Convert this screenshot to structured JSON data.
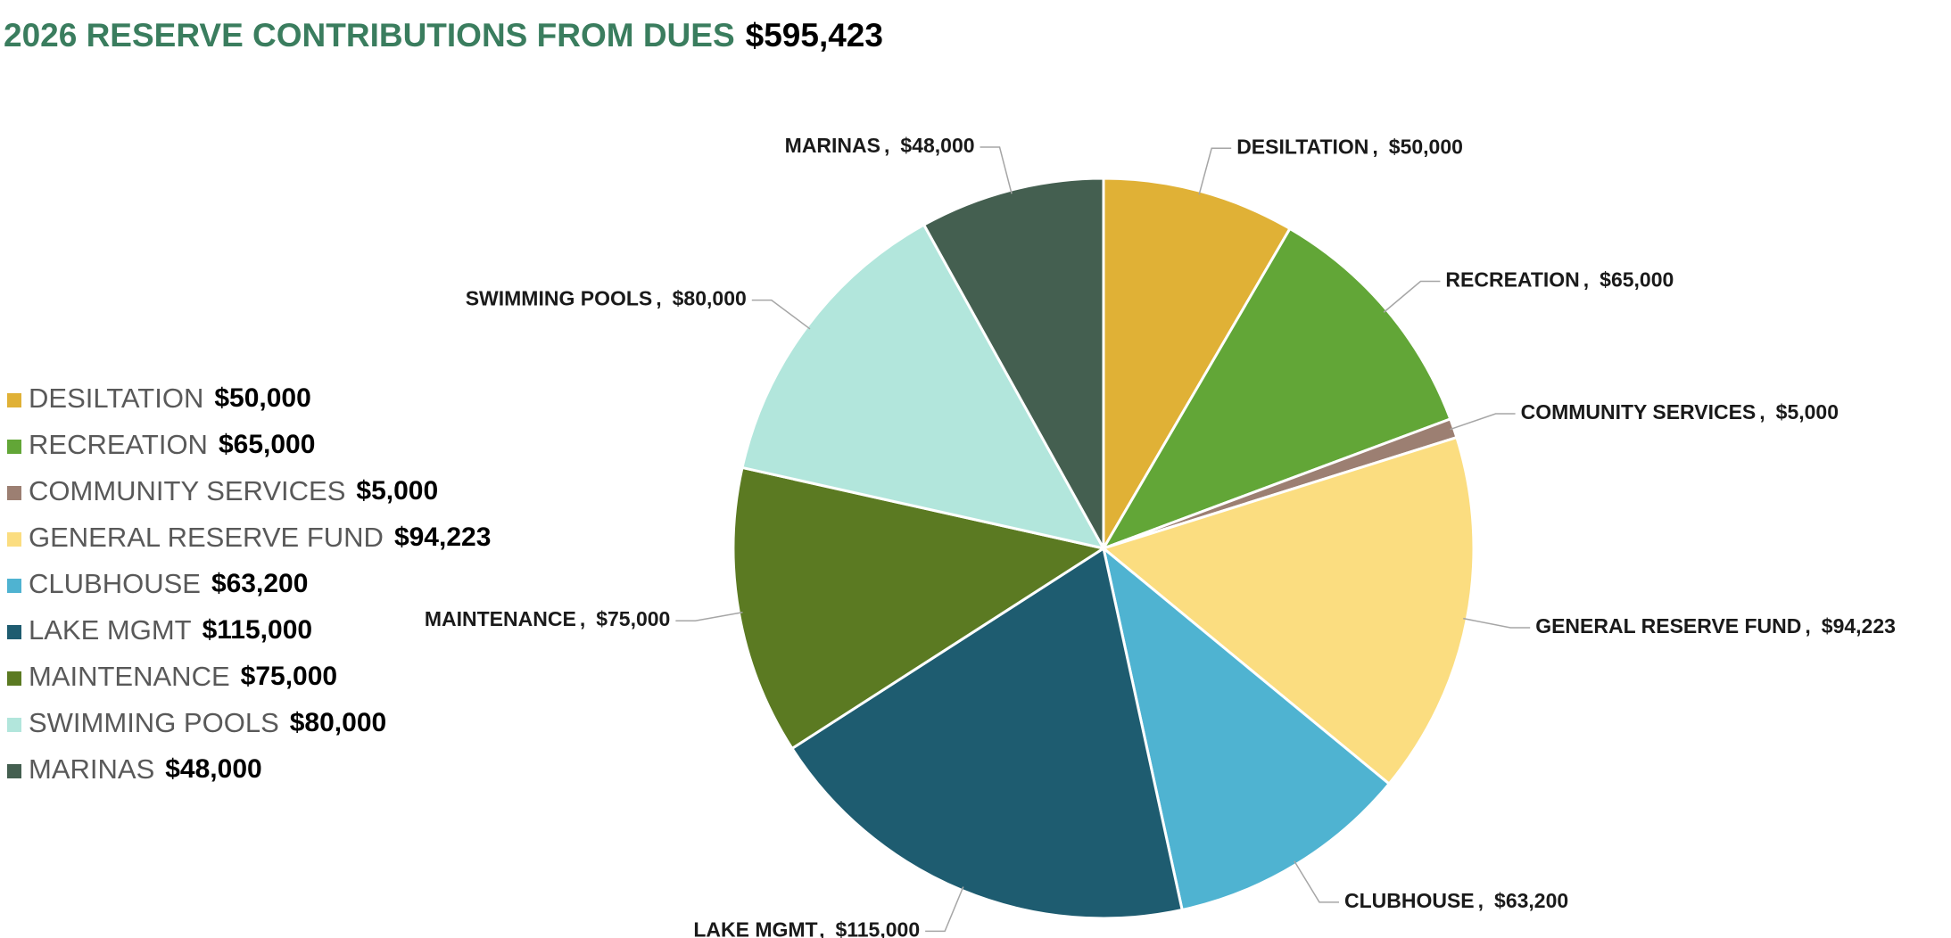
{
  "chart_data": {
    "type": "pie",
    "title": "2026 RESERVE CONTRIBUTIONS FROM DUES",
    "total": "$595,423",
    "categories": [
      "DESILTATION",
      "RECREATION",
      "COMMUNITY SERVICES",
      "GENERAL RESERVE FUND",
      "CLUBHOUSE",
      "LAKE MGMT",
      "MAINTENANCE",
      "SWIMMING POOLS",
      "MARINAS"
    ],
    "values": [
      50000,
      65000,
      5000,
      94223,
      63200,
      115000,
      75000,
      80000,
      48000
    ],
    "value_labels": [
      "$50,000",
      "$65,000",
      "$5,000",
      "$94,223",
      "$63,200",
      "$115,000",
      "$75,000",
      "$80,000",
      "$48,000"
    ],
    "colors": [
      "#e0b136",
      "#62a637",
      "#9c7f72",
      "#fbdd80",
      "#4fb3d1",
      "#1e5c70",
      "#5b7a22",
      "#b2e6dc",
      "#445f50"
    ],
    "data_label_separator": ",",
    "legend": "left"
  }
}
